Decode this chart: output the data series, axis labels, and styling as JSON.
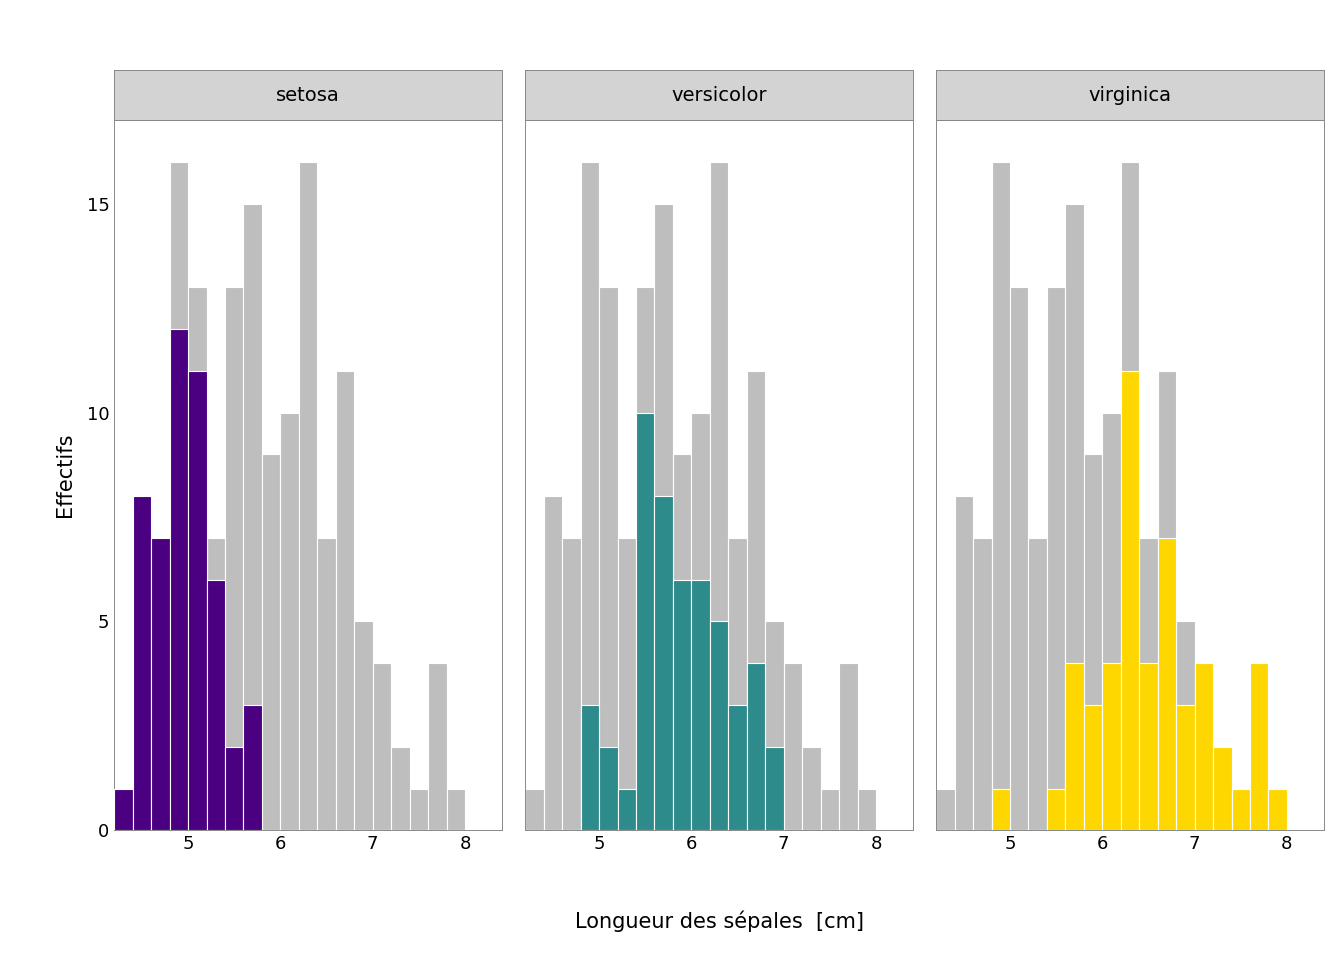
{
  "xlabel": "Longueur des sépales  [cm]",
  "ylabel": "Effectifs",
  "species": [
    "setosa",
    "versicolor",
    "virginica"
  ],
  "species_colors": [
    "#4B0082",
    "#2E8B8B",
    "#FFD700"
  ],
  "background_color": "#FFFFFF",
  "panel_bg": "#FFFFFF",
  "strip_bg": "#D3D3D3",
  "gray_color": "#BEBEBE",
  "grid_color": "#FFFFFF",
  "xlim": [
    4.2,
    8.4
  ],
  "ylim": [
    0,
    17
  ],
  "yticks": [
    0,
    5,
    10,
    15
  ],
  "xticks": [
    5,
    6,
    7,
    8
  ],
  "bin_width": 0.2,
  "bin_start": 4.2,
  "sepal_lengths": {
    "setosa": [
      5.1,
      4.9,
      4.7,
      4.6,
      5.0,
      5.4,
      4.6,
      5.0,
      4.4,
      4.9,
      5.4,
      4.8,
      4.8,
      4.3,
      5.8,
      5.7,
      5.4,
      5.1,
      5.7,
      5.1,
      5.4,
      5.1,
      4.6,
      5.1,
      4.8,
      5.0,
      5.0,
      5.2,
      5.2,
      4.7,
      4.8,
      5.4,
      5.2,
      5.5,
      4.9,
      5.0,
      5.5,
      4.9,
      4.4,
      5.1,
      5.0,
      4.5,
      4.4,
      5.0,
      5.1,
      4.8,
      5.1,
      4.6,
      5.3,
      5.0
    ],
    "versicolor": [
      7.0,
      6.4,
      6.9,
      5.5,
      6.5,
      5.7,
      6.3,
      4.9,
      6.6,
      5.2,
      5.0,
      5.9,
      6.0,
      6.1,
      5.6,
      6.7,
      5.6,
      5.8,
      6.2,
      5.6,
      5.9,
      6.1,
      6.3,
      6.1,
      6.4,
      6.6,
      6.8,
      6.7,
      6.0,
      5.7,
      5.5,
      5.5,
      5.8,
      6.0,
      5.4,
      6.0,
      6.7,
      6.3,
      5.6,
      5.5,
      5.5,
      6.1,
      5.8,
      5.0,
      5.6,
      5.7,
      5.7,
      6.2,
      5.1,
      5.7
    ],
    "virginica": [
      6.3,
      5.8,
      7.1,
      6.3,
      6.5,
      7.6,
      4.9,
      7.3,
      6.7,
      7.2,
      6.5,
      6.4,
      6.8,
      5.7,
      5.8,
      6.4,
      6.5,
      7.7,
      7.7,
      6.0,
      6.9,
      5.6,
      7.7,
      6.3,
      6.7,
      7.2,
      6.2,
      6.1,
      6.4,
      7.2,
      7.4,
      7.9,
      6.4,
      6.3,
      6.1,
      7.7,
      6.3,
      6.4,
      6.0,
      6.9,
      6.7,
      6.9,
      5.8,
      6.8,
      6.7,
      6.7,
      6.3,
      6.5,
      6.2,
      5.9
    ]
  }
}
